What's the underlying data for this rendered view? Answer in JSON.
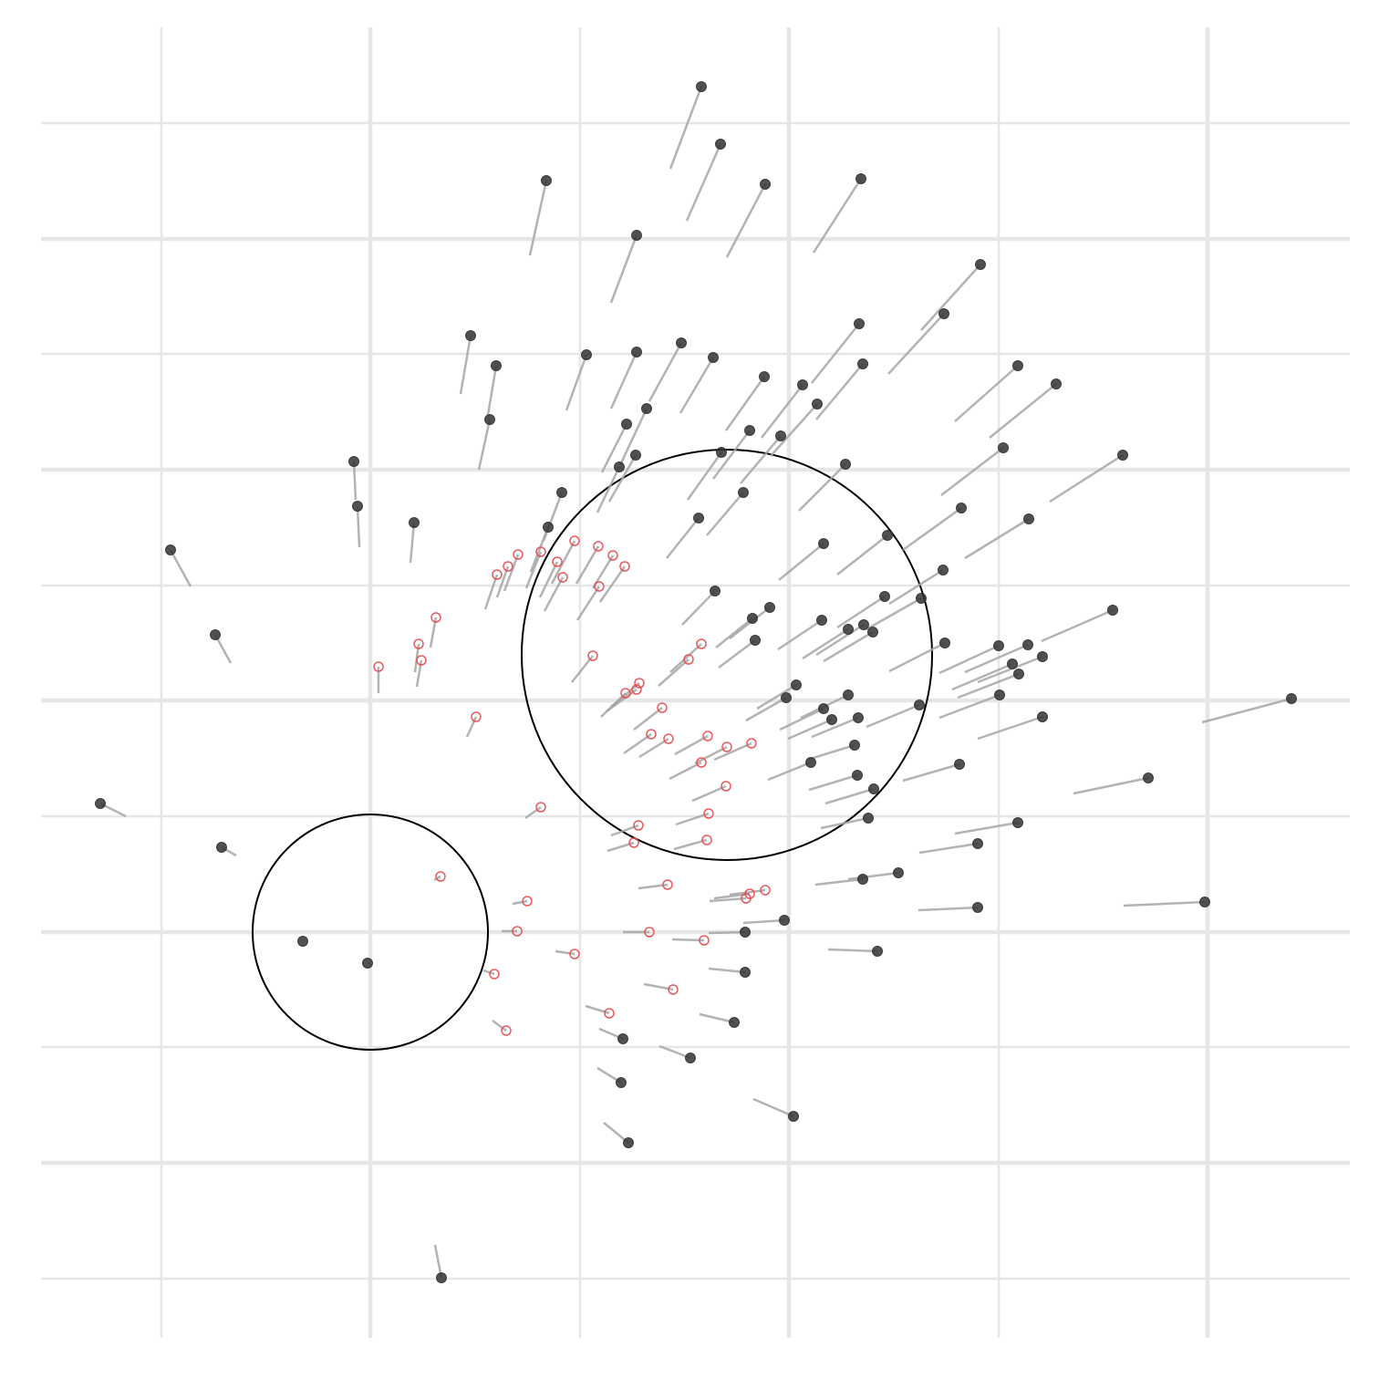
{
  "chart_data": {
    "type": "scatter",
    "xlim": [
      -361,
      1074
    ],
    "ylim": [
      -445,
      992
    ],
    "xticks_major": [
      0,
      459,
      918
    ],
    "xticks_minor": [
      -229,
      230,
      689
    ],
    "yticks_major": [
      -253,
      0,
      254,
      507,
      760
    ],
    "yticks_minor": [
      -380,
      -126,
      127,
      380,
      634,
      887
    ],
    "grid": true,
    "segment_color": "#a6a6a6",
    "circles": [
      {
        "cx": 0,
        "cy": 0,
        "r": 129,
        "color": "#000000"
      },
      {
        "cx": 391,
        "cy": 304,
        "r": 225,
        "color": "#000000"
      }
    ],
    "series": [
      {
        "color": "#333333",
        "filled": true,
        "x": [
          363,
          384,
          193,
          433,
          538,
          292,
          669,
          629,
          536,
          110,
          138,
          131,
          237,
          292,
          341,
          376,
          540,
          710,
          752,
          432,
          474,
          490,
          303,
          281,
          416,
          450,
          291,
          273,
          385,
          694,
          825,
          521,
          -18,
          -14,
          210,
          409,
          648,
          48,
          195,
          360,
          722,
          -219,
          567,
          497,
          628,
          378,
          564,
          604,
          814,
          438,
          419,
          495,
          541,
          524,
          551,
          -170,
          422,
          630,
          689,
          721,
          737,
          704,
          711,
          467,
          456,
          524,
          690,
          1010,
          497,
          602,
          506,
          535,
          737,
          531,
          483,
          646,
          534,
          853,
          552,
          -296,
          546,
          710,
          666,
          -163,
          579,
          540,
          666,
          915,
          454,
          411,
          -74,
          -3,
          556,
          411,
          399,
          277,
          351,
          275,
          464,
          283,
          78
        ],
        "y": [
          927,
          864,
          824,
          820,
          826,
          764,
          732,
          678,
          667,
          654,
          621,
          562,
          633,
          636,
          646,
          630,
          623,
          621,
          601,
          609,
          600,
          579,
          574,
          557,
          550,
          544,
          523,
          510,
          526,
          531,
          523,
          513,
          516,
          467,
          482,
          482,
          465,
          449,
          444,
          454,
          453,
          419,
          435,
          426,
          397,
          374,
          368,
          366,
          353,
          356,
          344,
          342,
          337,
          332,
          329,
          326,
          320,
          317,
          314,
          315,
          302,
          294,
          283,
          271,
          257,
          260,
          260,
          256,
          245,
          249,
          233,
          235,
          236,
          205,
          186,
          184,
          172,
          169,
          157,
          141,
          125,
          120,
          97,
          93,
          65,
          58,
          27,
          33,
          13,
          0,
          -10,
          -34,
          -21,
          -44,
          -99,
          -117,
          -138,
          -165,
          -202,
          -231,
          -379
        ],
        "x_end": [
          329,
          347,
          175,
          391,
          486,
          264,
          604,
          568,
          484,
          99,
          129,
          119,
          215,
          264,
          306,
          340,
          489,
          641,
          679,
          390,
          429,
          439,
          274,
          254,
          376,
          406,
          262,
          249,
          348,
          626,
          745,
          470,
          -16,
          -12,
          190,
          369,
          584,
          44,
          176,
          325,
          652,
          -197,
          512,
          448,
          569,
          342,
          512,
          544,
          736,
          394,
          379,
          447,
          489,
          474,
          497,
          -153,
          382,
          569,
          624,
          652,
          666,
          638,
          644,
          424,
          412,
          472,
          624,
          912,
          449,
          544,
          458,
          484,
          666,
          479,
          436,
          584,
          481,
          771,
          499,
          -268,
          494,
          641,
          602,
          -147,
          524,
          488,
          601,
          826,
          409,
          371,
          null,
          null,
          502,
          371,
          361,
          251,
          317,
          249,
          420,
          256,
          71
        ],
        "y_end": [
          837,
          780,
          742,
          740,
          745,
          690,
          660,
          612,
          602,
          590,
          567,
          507,
          572,
          574,
          582,
          569,
          562,
          560,
          542,
          550,
          542,
          522,
          512,
          504,
          497,
          492,
          472,
          460,
          474,
          479,
          472,
          462,
          474,
          422,
          429,
          435,
          419,
          405,
          395,
          410,
          410,
          379,
          392,
          386,
          360,
          337,
          334,
          332,
          319,
          322,
          312,
          310,
          304,
          300,
          297,
          295,
          290,
          286,
          284,
          285,
          274,
          266,
          257,
          245,
          232,
          235,
          235,
          230,
          222,
          225,
          212,
          214,
          212,
          189,
          167,
          166,
          156,
          152,
          141,
          127,
          114,
          108,
          87,
          84,
          58,
          52,
          24,
          29,
          10,
          -1,
          null,
          null,
          -19,
          -40,
          -90,
          -106,
          -125,
          -149,
          -183,
          -209,
          -343
        ]
      },
      {
        "color": "#e8474b",
        "filled": false,
        "x": [
          139,
          151,
          162,
          187,
          205,
          224,
          211,
          250,
          266,
          279,
          251,
          72,
          53,
          56,
          9,
          244,
          363,
          349,
          295,
          292,
          280,
          320,
          116,
          308,
          327,
          370,
          391,
          418,
          363,
          390,
          187,
          371,
          294,
          369,
          289,
          77,
          326,
          433,
          416,
          412,
          172,
          161,
          306,
          366,
          224,
          136,
          332,
          262,
          149
        ],
        "y": [
          392,
          401,
          414,
          417,
          406,
          429,
          389,
          423,
          413,
          401,
          379,
          345,
          316,
          298,
          291,
          303,
          316,
          299,
          273,
          266,
          262,
          246,
          236,
          217,
          212,
          215,
          203,
          207,
          186,
          160,
          137,
          130,
          117,
          101,
          98,
          61,
          52,
          46,
          42,
          37,
          34,
          1,
          0,
          -9,
          -24,
          -46,
          -63,
          -89,
          -108
        ],
        "x_end": [
          126,
          139,
          147,
          171,
          186,
          199,
          191,
          226,
          244,
          252,
          227,
          66,
          49,
          51,
          9,
          221,
          329,
          316,
          264,
          259,
          253,
          289,
          106,
          278,
          295,
          334,
          356,
          377,
          328,
          353,
          170,
          335,
          264,
          333,
          260,
          70,
          294,
          394,
          377,
          372,
          156,
          144,
          277,
          331,
          203,
          124,
          300,
          236,
          134
        ],
        "y_end": [
          354,
          367,
          374,
          377,
          367,
          382,
          352,
          382,
          377,
          362,
          342,
          312,
          285,
          269,
          262,
          274,
          285,
          270,
          247,
          242,
          236,
          222,
          214,
          196,
          192,
          195,
          185,
          189,
          168,
          144,
          125,
          118,
          106,
          91,
          89,
          57,
          48,
          41,
          37,
          34,
          31,
          1,
          0,
          -8,
          -21,
          -42,
          -57,
          -81,
          -97
        ]
      }
    ]
  }
}
